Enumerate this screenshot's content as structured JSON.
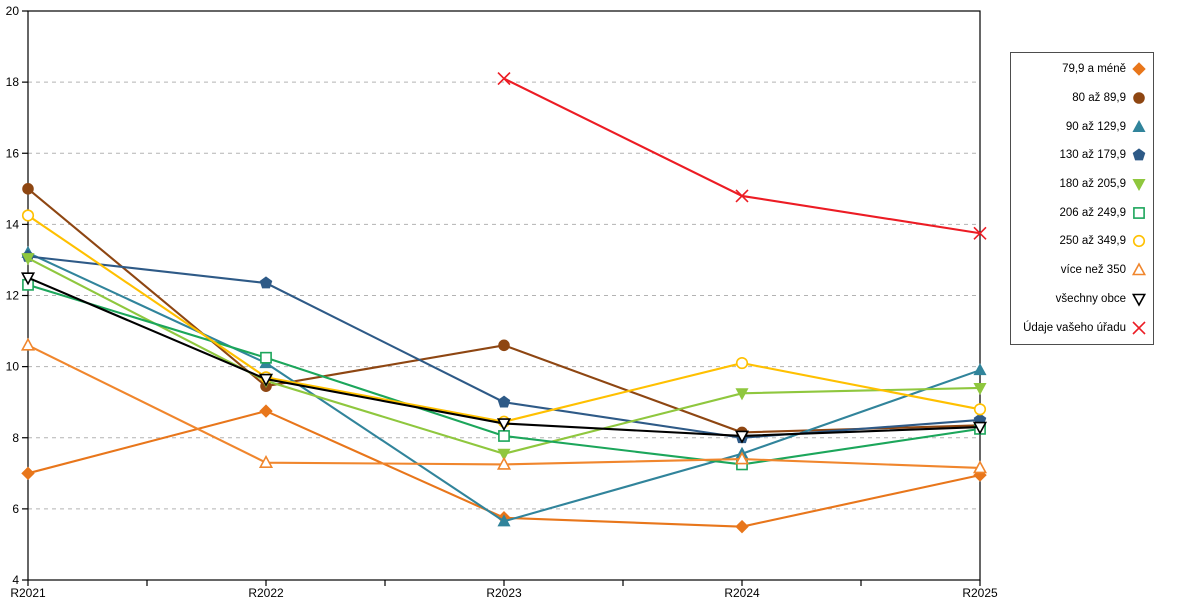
{
  "chart_data": {
    "type": "line",
    "title": "",
    "xlabel": "",
    "ylabel": "",
    "categories": [
      "R2021",
      "R2022",
      "R2023",
      "R2024",
      "R2025"
    ],
    "ylim": [
      4,
      20
    ],
    "yticks": [
      4,
      6,
      8,
      10,
      12,
      14,
      16,
      18,
      20
    ],
    "grid": "horizontal-dashed",
    "legend_position": "right",
    "axis_color": "#000000",
    "gridline_color": "#b3b3b3",
    "series": [
      {
        "name": "79,9 a méně",
        "marker": "diamond",
        "fill": "filled",
        "color": "#E8761B",
        "values": [
          7.0,
          8.75,
          5.75,
          5.5,
          6.95
        ]
      },
      {
        "name": "80 až 89,9",
        "marker": "circle",
        "fill": "filled",
        "color": "#8E4612",
        "values": [
          15.0,
          9.45,
          10.6,
          8.15,
          8.35
        ]
      },
      {
        "name": "90 až 129,9",
        "marker": "triangle-up",
        "fill": "filled",
        "color": "#31849B",
        "values": [
          13.2,
          10.1,
          5.65,
          7.55,
          9.9
        ]
      },
      {
        "name": "130 až 179,9",
        "marker": "pentagon",
        "fill": "filled",
        "color": "#2E5A87",
        "values": [
          13.1,
          12.35,
          9.0,
          8.0,
          8.5
        ]
      },
      {
        "name": "180 až 205,9",
        "marker": "triangle-down",
        "fill": "filled",
        "color": "#8FC73E",
        "values": [
          13.05,
          9.6,
          7.55,
          9.25,
          9.4
        ]
      },
      {
        "name": "206 až 249,9",
        "marker": "square",
        "fill": "open",
        "color": "#1CA65B",
        "values": [
          12.3,
          10.25,
          8.05,
          7.25,
          8.25
        ]
      },
      {
        "name": "250 až 349,9",
        "marker": "circle",
        "fill": "open",
        "color": "#FFC000",
        "values": [
          14.25,
          9.7,
          8.45,
          10.1,
          8.8
        ]
      },
      {
        "name": "více než 350",
        "marker": "triangle-up",
        "fill": "open",
        "color": "#F0862D",
        "values": [
          10.6,
          7.3,
          7.25,
          7.4,
          7.15
        ]
      },
      {
        "name": "všechny obce",
        "marker": "triangle-down",
        "fill": "open",
        "color": "#000000",
        "values": [
          12.5,
          9.65,
          8.4,
          8.05,
          8.3
        ]
      },
      {
        "name": "Údaje vašeho úřadu",
        "marker": "x",
        "fill": "open",
        "color": "#EC1C24",
        "values": [
          null,
          null,
          18.1,
          14.8,
          13.75
        ]
      }
    ]
  }
}
